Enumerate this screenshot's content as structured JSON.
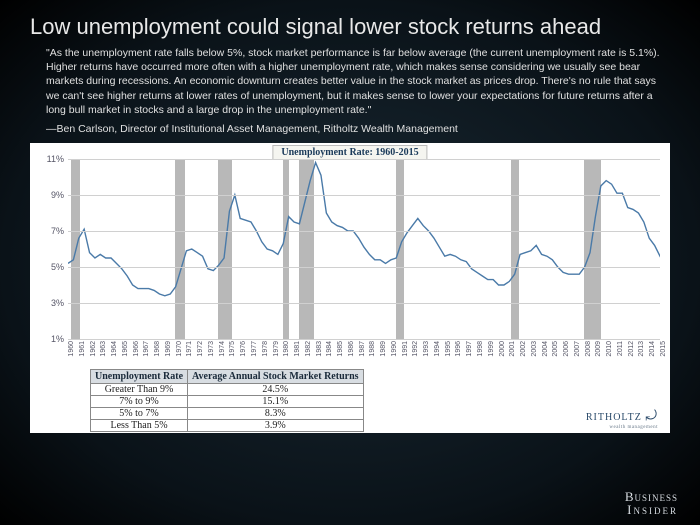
{
  "title": "Low unemployment could signal lower stock returns ahead",
  "quote": "\"As the unemployment rate falls below 5%, stock market performance is far below average (the current unemployment rate is 5.1%). Higher returns have occurred more often with a higher unemployment rate, which makes sense considering we usually see bear markets during recessions. An economic downturn creates better value in the stock market as prices drop. There's no rule that says we can't see higher returns at lower rates of unemployment, but it makes sense to lower your expectations for future returns after a long bull market in stocks and a large drop in the unemployment rate.\"",
  "attribution": "—Ben Carlson, Director of Institutional Asset Management, Ritholtz Wealth Management",
  "chart": {
    "type": "line",
    "title": "Unemployment Rate: 1960-2015",
    "line_color": "#4a7aa8",
    "line_width": 1.4,
    "background_color": "#ffffff",
    "grid_color": "#d0d0d0",
    "recession_color": "#b8b8b8",
    "ylim": [
      1,
      11
    ],
    "ytick_step": 2,
    "yticks": [
      1,
      3,
      5,
      7,
      9,
      11
    ],
    "ytick_labels": [
      "1%",
      "3%",
      "5%",
      "7%",
      "9%",
      "11%"
    ],
    "xlim": [
      1960,
      2015
    ],
    "xlabels": [
      1960,
      1961,
      1962,
      1963,
      1964,
      1965,
      1966,
      1967,
      1968,
      1969,
      1970,
      1971,
      1972,
      1973,
      1974,
      1975,
      1976,
      1977,
      1978,
      1979,
      1980,
      1981,
      1982,
      1983,
      1984,
      1985,
      1986,
      1987,
      1988,
      1989,
      1990,
      1991,
      1992,
      1993,
      1994,
      1995,
      1996,
      1997,
      1998,
      1999,
      2000,
      2001,
      2002,
      2003,
      2004,
      2005,
      2006,
      2007,
      2008,
      2009,
      2010,
      2011,
      2012,
      2013,
      2014,
      2015
    ],
    "recessions": [
      [
        1960.3,
        1961.1
      ],
      [
        1969.9,
        1970.9
      ],
      [
        1973.9,
        1975.2
      ],
      [
        1980.0,
        1980.5
      ],
      [
        1981.5,
        1982.9
      ],
      [
        1990.5,
        1991.2
      ],
      [
        2001.2,
        2001.9
      ],
      [
        2007.9,
        2009.5
      ]
    ],
    "series": [
      [
        1960.0,
        5.2
      ],
      [
        1960.5,
        5.4
      ],
      [
        1961.0,
        6.6
      ],
      [
        1961.5,
        7.1
      ],
      [
        1962.0,
        5.8
      ],
      [
        1962.5,
        5.5
      ],
      [
        1963.0,
        5.7
      ],
      [
        1963.5,
        5.5
      ],
      [
        1964.0,
        5.5
      ],
      [
        1964.5,
        5.2
      ],
      [
        1965.0,
        4.9
      ],
      [
        1965.5,
        4.5
      ],
      [
        1966.0,
        4.0
      ],
      [
        1966.5,
        3.8
      ],
      [
        1967.0,
        3.8
      ],
      [
        1967.5,
        3.8
      ],
      [
        1968.0,
        3.7
      ],
      [
        1968.5,
        3.5
      ],
      [
        1969.0,
        3.4
      ],
      [
        1969.5,
        3.5
      ],
      [
        1970.0,
        3.9
      ],
      [
        1970.5,
        4.9
      ],
      [
        1971.0,
        5.9
      ],
      [
        1971.5,
        6.0
      ],
      [
        1972.0,
        5.8
      ],
      [
        1972.5,
        5.6
      ],
      [
        1973.0,
        4.9
      ],
      [
        1973.5,
        4.8
      ],
      [
        1974.0,
        5.1
      ],
      [
        1974.5,
        5.5
      ],
      [
        1975.0,
        8.1
      ],
      [
        1975.5,
        9.0
      ],
      [
        1976.0,
        7.7
      ],
      [
        1976.5,
        7.6
      ],
      [
        1977.0,
        7.5
      ],
      [
        1977.5,
        7.0
      ],
      [
        1978.0,
        6.4
      ],
      [
        1978.5,
        6.0
      ],
      [
        1979.0,
        5.9
      ],
      [
        1979.5,
        5.7
      ],
      [
        1980.0,
        6.3
      ],
      [
        1980.5,
        7.8
      ],
      [
        1981.0,
        7.5
      ],
      [
        1981.5,
        7.4
      ],
      [
        1982.0,
        8.6
      ],
      [
        1982.5,
        9.8
      ],
      [
        1983.0,
        10.8
      ],
      [
        1983.5,
        10.1
      ],
      [
        1984.0,
        8.0
      ],
      [
        1984.5,
        7.5
      ],
      [
        1985.0,
        7.3
      ],
      [
        1985.5,
        7.2
      ],
      [
        1986.0,
        7.0
      ],
      [
        1986.5,
        7.0
      ],
      [
        1987.0,
        6.6
      ],
      [
        1987.5,
        6.1
      ],
      [
        1988.0,
        5.7
      ],
      [
        1988.5,
        5.4
      ],
      [
        1989.0,
        5.4
      ],
      [
        1989.5,
        5.2
      ],
      [
        1990.0,
        5.4
      ],
      [
        1990.5,
        5.5
      ],
      [
        1991.0,
        6.4
      ],
      [
        1991.5,
        6.9
      ],
      [
        1992.0,
        7.3
      ],
      [
        1992.5,
        7.7
      ],
      [
        1993.0,
        7.3
      ],
      [
        1993.5,
        7.0
      ],
      [
        1994.0,
        6.6
      ],
      [
        1994.5,
        6.1
      ],
      [
        1995.0,
        5.6
      ],
      [
        1995.5,
        5.7
      ],
      [
        1996.0,
        5.6
      ],
      [
        1996.5,
        5.4
      ],
      [
        1997.0,
        5.3
      ],
      [
        1997.5,
        4.9
      ],
      [
        1998.0,
        4.7
      ],
      [
        1998.5,
        4.5
      ],
      [
        1999.0,
        4.3
      ],
      [
        1999.5,
        4.3
      ],
      [
        2000.0,
        4.0
      ],
      [
        2000.5,
        4.0
      ],
      [
        2001.0,
        4.2
      ],
      [
        2001.5,
        4.6
      ],
      [
        2002.0,
        5.7
      ],
      [
        2002.5,
        5.8
      ],
      [
        2003.0,
        5.9
      ],
      [
        2003.5,
        6.2
      ],
      [
        2004.0,
        5.7
      ],
      [
        2004.5,
        5.6
      ],
      [
        2005.0,
        5.4
      ],
      [
        2005.5,
        5.0
      ],
      [
        2006.0,
        4.7
      ],
      [
        2006.5,
        4.6
      ],
      [
        2007.0,
        4.6
      ],
      [
        2007.5,
        4.6
      ],
      [
        2008.0,
        5.0
      ],
      [
        2008.5,
        5.8
      ],
      [
        2009.0,
        7.8
      ],
      [
        2009.5,
        9.5
      ],
      [
        2010.0,
        9.8
      ],
      [
        2010.5,
        9.6
      ],
      [
        2011.0,
        9.1
      ],
      [
        2011.5,
        9.1
      ],
      [
        2012.0,
        8.3
      ],
      [
        2012.5,
        8.2
      ],
      [
        2013.0,
        8.0
      ],
      [
        2013.5,
        7.5
      ],
      [
        2014.0,
        6.6
      ],
      [
        2014.5,
        6.2
      ],
      [
        2015.0,
        5.6
      ],
      [
        2015.5,
        5.1
      ]
    ]
  },
  "table": {
    "columns": [
      "Unemployment Rate",
      "Average Annual Stock Market Returns"
    ],
    "rows": [
      [
        "Greater Than 9%",
        "24.5%"
      ],
      [
        "7% to 9%",
        "15.1%"
      ],
      [
        "5% to 7%",
        "8.3%"
      ],
      [
        "Less Than 5%",
        "3.9%"
      ]
    ]
  },
  "source_logo": "RITHOLTZ",
  "source_logo_sub": "wealth management",
  "footer_logo_1": "Business",
  "footer_logo_2": "Insider"
}
